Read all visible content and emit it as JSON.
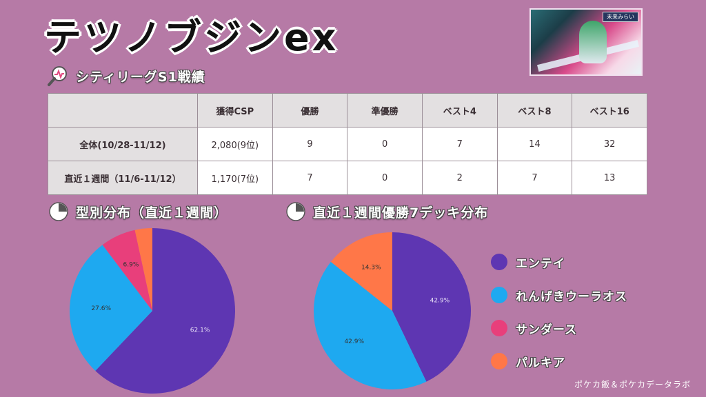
{
  "title": "テツノブジンex",
  "card": {
    "badge": "未来みらい"
  },
  "stats_section": {
    "label": "シティリーグS1戦績"
  },
  "table": {
    "headers": [
      "",
      "獲得CSP",
      "優勝",
      "準優勝",
      "ベスト4",
      "ベスト8",
      "ベスト16"
    ],
    "rows": [
      [
        "全体(10/28-11/12)",
        "2,080(9位)",
        "9",
        "0",
        "7",
        "14",
        "32"
      ],
      [
        "直近１週間（11/6-11/12）",
        "1,170(7位)",
        "7",
        "0",
        "2",
        "7",
        "13"
      ]
    ]
  },
  "colors": {
    "background": "#b67aa6",
    "エンテイ": "#5e36b2",
    "れんげきウーラオス": "#1ea9f0",
    "サンダース": "#e83f7b",
    "パルキア": "#ff7748"
  },
  "legend": [
    {
      "label": "エンテイ",
      "color": "#5e36b2"
    },
    {
      "label": "れんげきウーラオス",
      "color": "#1ea9f0"
    },
    {
      "label": "サンダース",
      "color": "#e83f7b"
    },
    {
      "label": "パルキア",
      "color": "#ff7748"
    }
  ],
  "footer": "ポケカ飯＆ポケカデータラボ",
  "chart_data": [
    {
      "type": "pie",
      "title": "型別分布（直近１週間）",
      "categories": [
        "エンテイ",
        "れんげきウーラオス",
        "サンダース",
        "パルキア"
      ],
      "values": [
        62.1,
        27.6,
        6.9,
        3.4
      ],
      "labels": [
        "62.1%",
        "27.6%",
        "6.9%",
        ""
      ],
      "colors": [
        "#5e36b2",
        "#1ea9f0",
        "#e83f7b",
        "#ff7748"
      ],
      "legend": "right"
    },
    {
      "type": "pie",
      "title": "直近１週間優勝7デッキ分布",
      "categories": [
        "エンテイ",
        "れんげきウーラオス",
        "パルキア"
      ],
      "values": [
        42.9,
        42.9,
        14.3
      ],
      "labels": [
        "42.9%",
        "42.9%",
        "14.3%"
      ],
      "colors": [
        "#5e36b2",
        "#1ea9f0",
        "#ff7748"
      ],
      "legend": "right"
    }
  ]
}
